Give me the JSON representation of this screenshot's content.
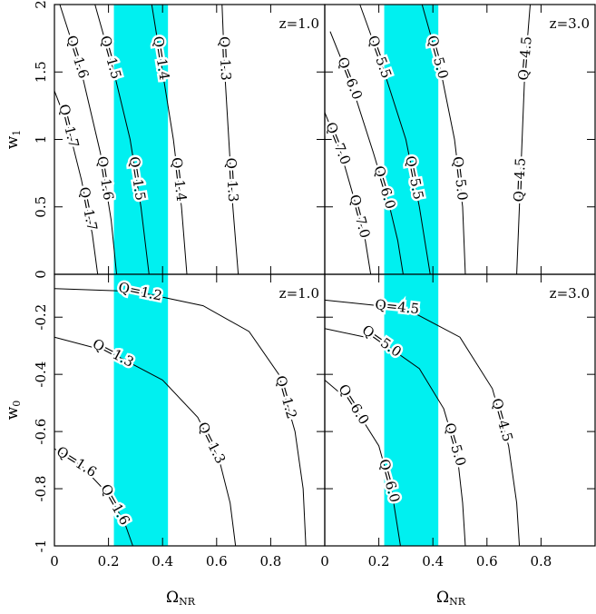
{
  "chart_data": [
    {
      "type": "contour",
      "annotation": "z=1.0",
      "xlim": [
        0,
        1
      ],
      "ylim": [
        0,
        2
      ],
      "xticks": [
        0,
        0.2,
        0.4,
        0.6,
        0.8
      ],
      "yticks": [
        0,
        0.5,
        1,
        1.5,
        2
      ],
      "ylabel": {
        "text": "w",
        "sub": "1"
      },
      "band": [
        0.22,
        0.42
      ],
      "band_color": "#00f0f0",
      "contours": [
        {
          "label": "Q=1.7",
          "x": [
            0,
            0.05,
            0.1,
            0.14,
            0.16
          ],
          "y": [
            1.36,
            1.1,
            0.7,
            0.3,
            0
          ]
        },
        {
          "label": "Q=1.6",
          "x": [
            0.02,
            0.1,
            0.17,
            0.21,
            0.23
          ],
          "y": [
            2,
            1.5,
            0.9,
            0.4,
            0
          ]
        },
        {
          "label": "Q=1.5",
          "x": [
            0.15,
            0.22,
            0.28,
            0.32,
            0.35
          ],
          "y": [
            2,
            1.5,
            1,
            0.5,
            0
          ]
        },
        {
          "label": "Q=1.4",
          "x": [
            0.36,
            0.4,
            0.44,
            0.47,
            0.49
          ],
          "y": [
            2,
            1.5,
            1,
            0.5,
            0
          ]
        },
        {
          "label": "Q=1.3",
          "x": [
            0.62,
            0.63,
            0.645,
            0.66,
            0.68
          ],
          "y": [
            2,
            1.5,
            1,
            0.5,
            0
          ]
        }
      ]
    },
    {
      "type": "contour",
      "annotation": "z=3.0",
      "xlim": [
        0,
        1
      ],
      "ylim": [
        0,
        2
      ],
      "xticks": [
        0,
        0.2,
        0.4,
        0.6,
        0.8
      ],
      "yticks": [
        0,
        0.5,
        1,
        1.5,
        2
      ],
      "band": [
        0.22,
        0.42
      ],
      "band_color": "#00f0f0",
      "contours": [
        {
          "label": "Q=7.0",
          "x": [
            0,
            0.06,
            0.11,
            0.15,
            0.17
          ],
          "y": [
            1.2,
            0.9,
            0.55,
            0.25,
            0
          ]
        },
        {
          "label": "Q=6.0",
          "x": [
            0.02,
            0.1,
            0.18,
            0.24,
            0.27,
            0.29
          ],
          "y": [
            1.8,
            1.4,
            0.9,
            0.5,
            0.25,
            0
          ]
        },
        {
          "label": "Q=5.5",
          "x": [
            0.13,
            0.22,
            0.3,
            0.35,
            0.39
          ],
          "y": [
            2,
            1.5,
            1,
            0.5,
            0
          ]
        },
        {
          "label": "Q=5.0",
          "x": [
            0.36,
            0.43,
            0.48,
            0.51,
            0.52
          ],
          "y": [
            2,
            1.5,
            1,
            0.5,
            0
          ]
        },
        {
          "label": "Q=4.5",
          "x": [
            0.76,
            0.74,
            0.73,
            0.72,
            0.71
          ],
          "y": [
            2,
            1.5,
            1,
            0.5,
            0
          ]
        }
      ]
    },
    {
      "type": "contour",
      "annotation": "z=1.0",
      "xlim": [
        0,
        1
      ],
      "ylim": [
        -1,
        -0.05
      ],
      "xticks": [
        0,
        0.2,
        0.4,
        0.6,
        0.8
      ],
      "yticks": [
        -1,
        -0.8,
        -0.6,
        -0.4,
        -0.2
      ],
      "xlabel": {
        "text": "Ω",
        "sub": "NR"
      },
      "ylabel": {
        "text": "w",
        "sub": "0"
      },
      "band": [
        0.22,
        0.42
      ],
      "band_color": "#00f0f0",
      "contours": [
        {
          "label": "Q=1.2",
          "x": [
            0,
            0.3,
            0.55,
            0.72,
            0.83,
            0.89,
            0.92,
            0.93
          ],
          "y": [
            -0.1,
            -0.11,
            -0.16,
            -0.25,
            -0.4,
            -0.6,
            -0.8,
            -1
          ]
        },
        {
          "label": "Q=1.3",
          "x": [
            0,
            0.2,
            0.4,
            0.53,
            0.61,
            0.65,
            0.67
          ],
          "y": [
            -0.27,
            -0.32,
            -0.42,
            -0.55,
            -0.7,
            -0.85,
            -1
          ]
        },
        {
          "label": "Q=1.6",
          "x": [
            0,
            0.1,
            0.2,
            0.26,
            0.29
          ],
          "y": [
            -0.66,
            -0.72,
            -0.82,
            -0.92,
            -1
          ]
        }
      ]
    },
    {
      "type": "contour",
      "annotation": "z=3.0",
      "xlim": [
        0,
        1
      ],
      "ylim": [
        -1,
        -0.05
      ],
      "xticks": [
        0,
        0.2,
        0.4,
        0.6,
        0.8
      ],
      "yticks": [
        -1,
        -0.8,
        -0.6,
        -0.4,
        -0.2
      ],
      "xlabel": {
        "text": "Ω",
        "sub": "NR"
      },
      "band": [
        0.22,
        0.42
      ],
      "band_color": "#00f0f0",
      "contours": [
        {
          "label": "Q=4.5",
          "x": [
            0,
            0.3,
            0.5,
            0.62,
            0.68,
            0.71,
            0.72
          ],
          "y": [
            -0.14,
            -0.17,
            -0.27,
            -0.45,
            -0.65,
            -0.85,
            -1
          ]
        },
        {
          "label": "Q=5.0",
          "x": [
            0,
            0.2,
            0.35,
            0.44,
            0.49,
            0.51,
            0.52
          ],
          "y": [
            -0.24,
            -0.28,
            -0.38,
            -0.52,
            -0.68,
            -0.85,
            -1
          ]
        },
        {
          "label": "Q=6.0",
          "x": [
            0,
            0.1,
            0.2,
            0.25,
            0.28
          ],
          "y": [
            -0.42,
            -0.5,
            -0.65,
            -0.82,
            -1
          ]
        }
      ]
    }
  ]
}
